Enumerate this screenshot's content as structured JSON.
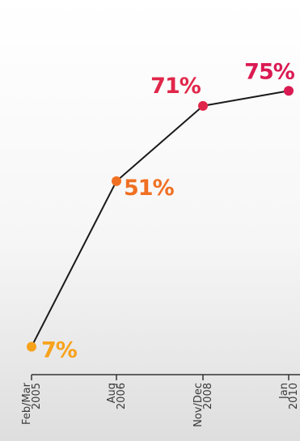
{
  "chart_data": {
    "type": "line",
    "categories": [
      "Feb/Mar 2005",
      "Aug 2006",
      "Nov/Dec 2008",
      "Jan 2010"
    ],
    "values": [
      7,
      51,
      71,
      75
    ],
    "data_labels": [
      "7%",
      "51%",
      "71%",
      "75%"
    ],
    "tick_labels": [
      [
        "Feb/Mar",
        "2005"
      ],
      [
        "Aug",
        "2006"
      ],
      [
        "Nov/Dec",
        "2008"
      ],
      [
        "Jan",
        "2010"
      ]
    ],
    "point_colors": [
      "#f7a21b",
      "#f07022",
      "#e0274a",
      "#da1a52"
    ],
    "line_color": "#1a1a1a",
    "axis_color": "#333333",
    "ylim": [
      0,
      100
    ],
    "grid": false,
    "legend": "none"
  }
}
